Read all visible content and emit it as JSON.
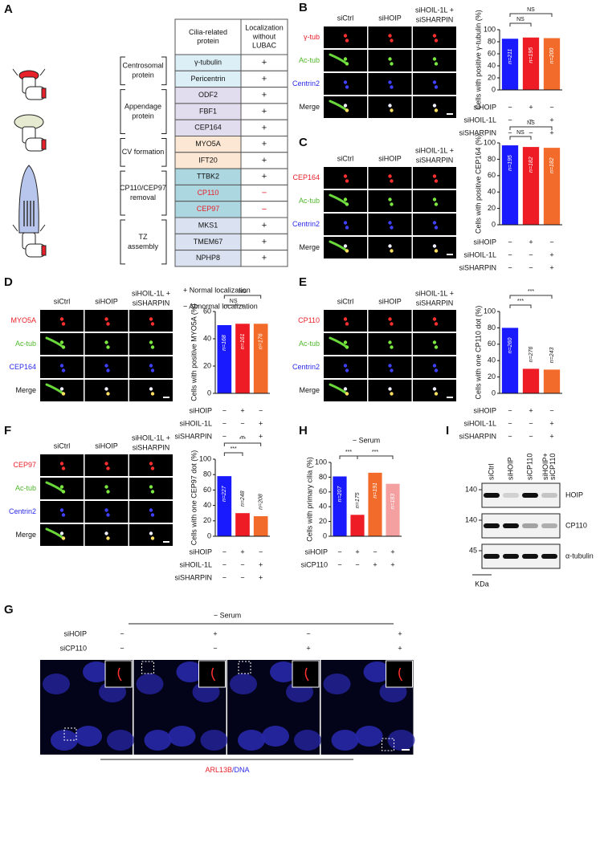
{
  "panel_a": {
    "label": "A",
    "header": [
      [
        "Cilia-related",
        "protein"
      ],
      [
        "Localization",
        "without",
        "LUBAC"
      ]
    ],
    "groups": [
      {
        "name": [
          "Centrosomal",
          "protein"
        ],
        "color": "#dceef6",
        "proteins": [
          [
            "γ-tubulin",
            "+"
          ],
          [
            "Pericentrin",
            "+"
          ]
        ]
      },
      {
        "name": [
          "Appendage",
          "protein"
        ],
        "color": "#e2ddee",
        "proteins": [
          [
            "ODF2",
            "+"
          ],
          [
            "FBF1",
            "+"
          ],
          [
            "CEP164",
            "+"
          ]
        ]
      },
      {
        "name": [
          "CV formation"
        ],
        "color": "#fbe7d3",
        "proteins": [
          [
            "MYO5A",
            "+"
          ],
          [
            "IFT20",
            "+"
          ]
        ]
      },
      {
        "name": [
          "CP110/CEP97",
          "removal"
        ],
        "color": "#acd7e0",
        "proteins": [
          [
            "TTBK2",
            "+"
          ],
          [
            "CP110",
            "−"
          ],
          [
            "CEP97",
            "−"
          ]
        ]
      },
      {
        "name": [
          "TZ",
          "assembly"
        ],
        "color": "#dae2f1",
        "proteins": [
          [
            "MKS1",
            "+"
          ],
          [
            "TMEM67",
            "+"
          ],
          [
            "NPHP8",
            "+"
          ]
        ]
      }
    ],
    "legend": [
      "+  Normal localization",
      "−  Abnormal localization"
    ]
  },
  "panels": {
    "B": {
      "label": "B",
      "columns": [
        [
          "siCtrl"
        ],
        [
          "siHOIP"
        ],
        [
          "siHOIL-1L +",
          "siSHARPIN"
        ]
      ],
      "rows": [
        {
          "name": "γ-tub",
          "color": "#e8202a"
        },
        {
          "name": "Ac-tub",
          "color": "#4fb82a"
        },
        {
          "name": "Centrin2",
          "color": "#2a2ae8"
        },
        {
          "name": "Merge",
          "color": "#111111"
        }
      ]
    },
    "C": {
      "label": "C",
      "columns": [
        [
          "siCtrl"
        ],
        [
          "siHOIP"
        ],
        [
          "siHOIL-1L +",
          "siSHARPIN"
        ]
      ],
      "rows": [
        {
          "name": "CEP164",
          "color": "#e8202a"
        },
        {
          "name": "Ac-tub",
          "color": "#4fb82a"
        },
        {
          "name": "Centrin2",
          "color": "#2a2ae8"
        },
        {
          "name": "Merge",
          "color": "#111111"
        }
      ]
    },
    "D": {
      "label": "D",
      "columns": [
        [
          "siCtrl"
        ],
        [
          "siHOIP"
        ],
        [
          "siHOIL-1L +",
          "siSHARPIN"
        ]
      ],
      "rows": [
        {
          "name": "MYO5A",
          "color": "#e8202a"
        },
        {
          "name": "Ac-tub",
          "color": "#4fb82a"
        },
        {
          "name": "CEP164",
          "color": "#2a2ae8"
        },
        {
          "name": "Merge",
          "color": "#111111"
        }
      ]
    },
    "E": {
      "label": "E",
      "columns": [
        [
          "siCtrl"
        ],
        [
          "siHOIP"
        ],
        [
          "siHOIL-1L +",
          "siSHARPIN"
        ]
      ],
      "rows": [
        {
          "name": "CP110",
          "color": "#e8202a"
        },
        {
          "name": "Ac-tub",
          "color": "#4fb82a"
        },
        {
          "name": "Centrin2",
          "color": "#2a2ae8"
        },
        {
          "name": "Merge",
          "color": "#111111"
        }
      ]
    },
    "F": {
      "label": "F",
      "columns": [
        [
          "siCtrl"
        ],
        [
          "siHOIP"
        ],
        [
          "siHOIL-1L +",
          "siSHARPIN"
        ]
      ],
      "rows": [
        {
          "name": "CEP97",
          "color": "#e8202a"
        },
        {
          "name": "Ac-tub",
          "color": "#4fb82a"
        },
        {
          "name": "Centrin2",
          "color": "#2a2ae8"
        },
        {
          "name": "Merge",
          "color": "#111111"
        }
      ]
    }
  },
  "chart_data": [
    {
      "type": "bar",
      "y_label": "Cells with positive γ-tubulin (%)",
      "values": [
        85,
        87,
        86
      ],
      "n_labels": [
        "n=211",
        "n=195",
        "n=200"
      ],
      "colors": [
        "#1a1aff",
        "#ee1c25",
        "#f26b2a"
      ],
      "ylim": [
        0,
        100
      ],
      "yticks": [
        0,
        20,
        40,
        60,
        80,
        100
      ],
      "significance": [
        "NS",
        "NS"
      ],
      "conditions": [
        {
          "name": "siHOIP",
          "signs": [
            "−",
            "+",
            "−"
          ]
        },
        {
          "name": "siHOIL-1L",
          "signs": [
            "−",
            "−",
            "+"
          ]
        },
        {
          "name": "siSHARPIN",
          "signs": [
            "−",
            "−",
            "+"
          ]
        }
      ]
    },
    {
      "type": "bar",
      "y_label": "Cells with positive CEP164 (%)",
      "values": [
        97,
        95,
        94
      ],
      "n_labels": [
        "n=195",
        "n=182",
        "n=182"
      ],
      "colors": [
        "#1a1aff",
        "#ee1c25",
        "#f26b2a"
      ],
      "ylim": [
        0,
        100
      ],
      "yticks": [
        0,
        20,
        40,
        60,
        80,
        100
      ],
      "significance": [
        "NS",
        "NS"
      ],
      "conditions": [
        {
          "name": "siHOIP",
          "signs": [
            "−",
            "+",
            "−"
          ]
        },
        {
          "name": "siHOIL-1L",
          "signs": [
            "−",
            "−",
            "+"
          ]
        },
        {
          "name": "siSHARPIN",
          "signs": [
            "−",
            "−",
            "+"
          ]
        }
      ]
    },
    {
      "type": "bar",
      "y_label": "Cells with positive MYO5A (%)",
      "values": [
        50,
        51,
        51
      ],
      "n_labels": [
        "n=168",
        "n=161",
        "n=176"
      ],
      "colors": [
        "#1a1aff",
        "#ee1c25",
        "#f26b2a"
      ],
      "ylim": [
        0,
        60
      ],
      "yticks": [
        0,
        20,
        40,
        60
      ],
      "significance": [
        "NS",
        "NS"
      ],
      "conditions": [
        {
          "name": "siHOIP",
          "signs": [
            "−",
            "+",
            "−"
          ]
        },
        {
          "name": "siHOIL-1L",
          "signs": [
            "−",
            "−",
            "+"
          ]
        },
        {
          "name": "siSHARPIN",
          "signs": [
            "−",
            "−",
            "+"
          ]
        }
      ]
    },
    {
      "type": "bar",
      "y_label": "Cells with one CP110 dot (%)",
      "values": [
        80,
        30,
        29
      ],
      "n_labels": [
        "n=260",
        "n=276",
        "n=243"
      ],
      "colors": [
        "#1a1aff",
        "#ee1c25",
        "#f26b2a"
      ],
      "ylim": [
        0,
        100
      ],
      "yticks": [
        0,
        20,
        40,
        60,
        80,
        100
      ],
      "significance": [
        "***",
        "***"
      ],
      "conditions": [
        {
          "name": "siHOIP",
          "signs": [
            "−",
            "+",
            "−"
          ]
        },
        {
          "name": "siHOIL-1L",
          "signs": [
            "−",
            "−",
            "+"
          ]
        },
        {
          "name": "siSHARPIN",
          "signs": [
            "−",
            "−",
            "+"
          ]
        }
      ]
    },
    {
      "type": "bar",
      "y_label": "Cells with one CEP97 dot (%)",
      "values": [
        78,
        30,
        26
      ],
      "n_labels": [
        "n=227",
        "n=248",
        "n=208"
      ],
      "colors": [
        "#1a1aff",
        "#ee1c25",
        "#f26b2a"
      ],
      "ylim": [
        0,
        100
      ],
      "yticks": [
        0,
        20,
        40,
        60,
        80,
        100
      ],
      "significance": [
        "***",
        "***"
      ],
      "conditions": [
        {
          "name": "siHOIP",
          "signs": [
            "−",
            "+",
            "−"
          ]
        },
        {
          "name": "siHOIL-1L",
          "signs": [
            "−",
            "−",
            "+"
          ]
        },
        {
          "name": "siSHARPIN",
          "signs": [
            "−",
            "−",
            "+"
          ]
        }
      ]
    },
    {
      "type": "bar",
      "panel_label": "H",
      "title": "− Serum",
      "y_label": "Cells with primary cilia (%)",
      "values": [
        81,
        29,
        86,
        71
      ],
      "n_labels": [
        "n=207",
        "n=175",
        "n=191",
        "n=183"
      ],
      "colors": [
        "#1a1aff",
        "#ee1c25",
        "#f26b2a",
        "#f4a0a0"
      ],
      "ylim": [
        0,
        100
      ],
      "yticks": [
        0,
        20,
        40,
        60,
        80,
        100
      ],
      "significance": [
        "***",
        "***"
      ],
      "conditions": [
        {
          "name": "siHOIP",
          "signs": [
            "−",
            "+",
            "−",
            "+"
          ]
        },
        {
          "name": "siCP110",
          "signs": [
            "−",
            "−",
            "+",
            "+"
          ]
        }
      ]
    }
  ],
  "panel_i": {
    "label": "I",
    "lanes": [
      [
        "siCtrl"
      ],
      [
        "siHOIP"
      ],
      [
        "siCP110"
      ],
      [
        "siHOIP+",
        "siCP110"
      ]
    ],
    "blots": [
      {
        "protein": "HOIP",
        "marker": 140
      },
      {
        "protein": "CP110",
        "marker": 140
      },
      {
        "protein": "α-tubulin",
        "marker": 45
      }
    ],
    "unit": "KDa"
  },
  "panel_g": {
    "label": "G",
    "title": "− Serum",
    "conditions": [
      {
        "name": "siHOIP",
        "signs": [
          "−",
          "+",
          "−",
          "+"
        ]
      },
      {
        "name": "siCP110",
        "signs": [
          "−",
          "−",
          "+",
          "+"
        ]
      }
    ],
    "caption": [
      "ARL13B",
      "/DNA"
    ]
  }
}
